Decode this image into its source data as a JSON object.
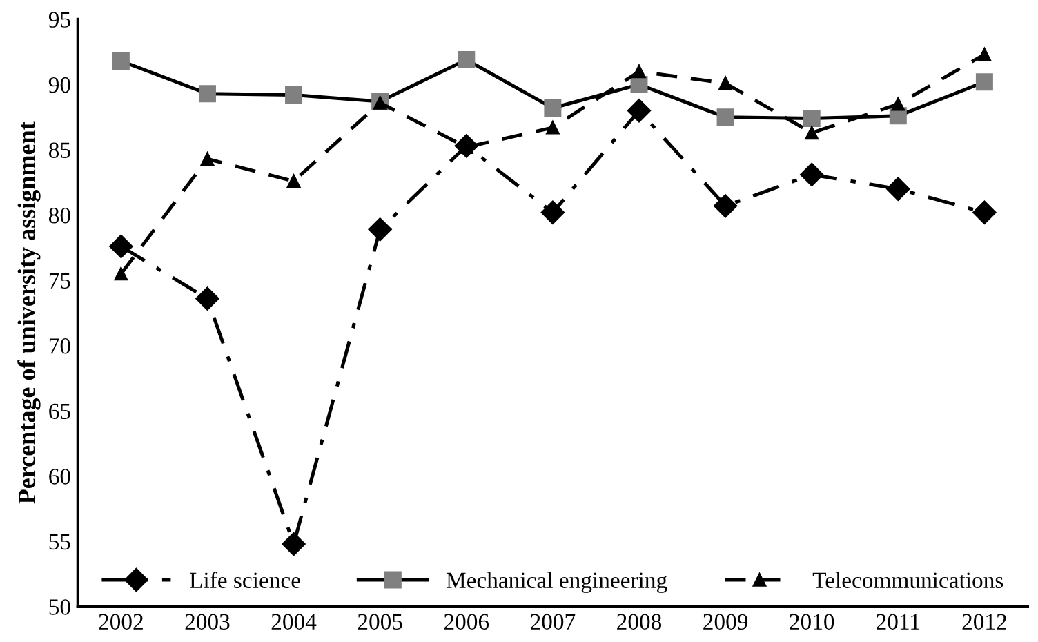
{
  "chart_data": {
    "type": "line",
    "ylabel": "Percentage of university assignment",
    "categories": [
      "2002",
      "2003",
      "2004",
      "2005",
      "2006",
      "2007",
      "2008",
      "2009",
      "2010",
      "2011",
      "2012"
    ],
    "series": [
      {
        "name": "Life science",
        "color": "#000000",
        "marker": "diamond",
        "line_style": "dashdot",
        "values": [
          77.6,
          73.6,
          54.8,
          78.9,
          85.3,
          80.2,
          88.0,
          80.7,
          83.1,
          82.0,
          80.2
        ]
      },
      {
        "name": "Mechanical engineering",
        "color": "#000000",
        "marker": "square",
        "line_style": "solid",
        "values": [
          91.8,
          89.3,
          89.2,
          88.7,
          91.9,
          88.2,
          90.0,
          87.5,
          87.4,
          87.6,
          90.2
        ]
      },
      {
        "name": "Telecommunications",
        "color": "#000000",
        "marker": "triangle",
        "line_style": "dashed",
        "values": [
          75.5,
          84.3,
          82.6,
          88.6,
          85.2,
          86.7,
          91.0,
          90.1,
          86.3,
          88.5,
          92.3
        ]
      }
    ],
    "ylim": [
      50,
      95
    ],
    "yticks": [
      50,
      55,
      60,
      65,
      70,
      75,
      80,
      85,
      90,
      95
    ],
    "grid": false,
    "legend": "bottom"
  }
}
